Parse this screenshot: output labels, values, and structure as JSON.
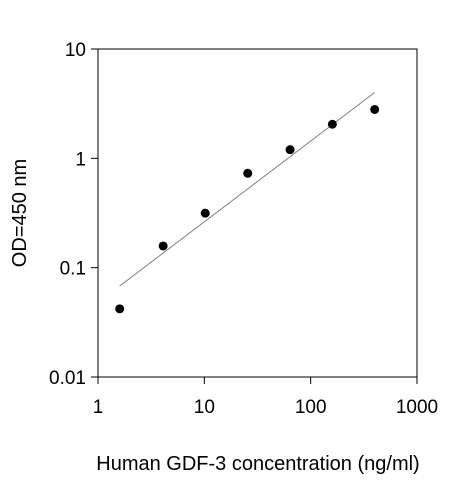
{
  "chart_data": {
    "type": "scatter",
    "title": "",
    "xlabel": "Human GDF-3 concentration (ng/ml)",
    "ylabel": "OD=450 nm",
    "xscale": "log",
    "yscale": "log",
    "xlim": [
      1,
      1000
    ],
    "ylim": [
      0.01,
      10
    ],
    "x_ticks": [
      1,
      10,
      100,
      1000
    ],
    "x_tick_labels": [
      "1",
      "10",
      "100",
      "1000"
    ],
    "y_ticks": [
      0.01,
      0.1,
      1,
      10
    ],
    "y_tick_labels": [
      "0.01",
      "0.1",
      "1",
      "10"
    ],
    "grid": false,
    "legend": "none",
    "series": [
      {
        "x": [
          1.6,
          4.1,
          10.2,
          25.6,
          64,
          160,
          400
        ],
        "y": [
          0.042,
          0.158,
          0.315,
          0.73,
          1.2,
          2.05,
          2.8
        ],
        "color": "#000000",
        "marker": "filled-circle"
      }
    ],
    "fit_line": {
      "x": [
        1.6,
        400
      ],
      "y": [
        0.068,
        4.0
      ],
      "color": "#808080"
    }
  }
}
